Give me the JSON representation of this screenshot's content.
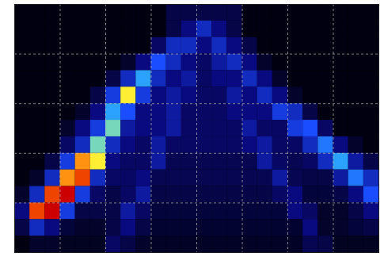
{
  "chart_data": {
    "type": "heatmap",
    "xlim": [
      0,
      8
    ],
    "ylim": [
      0,
      5
    ],
    "xticks": [
      1,
      2,
      3,
      4,
      5,
      6,
      7
    ],
    "yticks": [
      1,
      2,
      3,
      4
    ],
    "grid": true,
    "tick_labels": false,
    "cells": [
      [
        0,
        0,
        0,
        0,
        0,
        0,
        0,
        0,
        0,
        0,
        1,
        1,
        1,
        1,
        1,
        0,
        0,
        0,
        0,
        0,
        0,
        0,
        0,
        0
      ],
      [
        0,
        0,
        0,
        0,
        0,
        0,
        0,
        0,
        0,
        0,
        1,
        2,
        3,
        2,
        1,
        0,
        0,
        0,
        0,
        0,
        0,
        0,
        0,
        0
      ],
      [
        0,
        0,
        0,
        0,
        0,
        0,
        0,
        0,
        0,
        1.5,
        3,
        3,
        2,
        3,
        2,
        1,
        0,
        0,
        0,
        0,
        0,
        0,
        0,
        0
      ],
      [
        0,
        0,
        0,
        0,
        0,
        0,
        0,
        0.5,
        2,
        4,
        3,
        2,
        1.5,
        2.5,
        3,
        2,
        0.5,
        0,
        0,
        0,
        0,
        0,
        0,
        0
      ],
      [
        0,
        0,
        0,
        0,
        0,
        0,
        1,
        3,
        5,
        3,
        2,
        2.5,
        1.5,
        2,
        2,
        3,
        2,
        0.5,
        0,
        0,
        0,
        0,
        0,
        0
      ],
      [
        0,
        0,
        0,
        0,
        0,
        1,
        3.5,
        7,
        3.5,
        2,
        2.5,
        2,
        1.5,
        1.5,
        2.5,
        2,
        3,
        2,
        0.5,
        0,
        0,
        0,
        0,
        0
      ],
      [
        0,
        0,
        0,
        0,
        0.5,
        2,
        5,
        4,
        2,
        2,
        2.5,
        1.5,
        1.5,
        1.5,
        2,
        2,
        2,
        3.5,
        3,
        1,
        0,
        0,
        0,
        0
      ],
      [
        0,
        0,
        0,
        0.5,
        2,
        3.5,
        6,
        2.5,
        2,
        2,
        2.5,
        1.5,
        1.5,
        1.5,
        1.5,
        2.5,
        1.5,
        1.5,
        3.5,
        4,
        1.5,
        0,
        0,
        0
      ],
      [
        0,
        0,
        0,
        1.5,
        3,
        6,
        3,
        2,
        1.5,
        2.5,
        1.5,
        1.5,
        1.5,
        1.5,
        1.5,
        2,
        2.5,
        1.5,
        1.5,
        3,
        4.5,
        2,
        0.5,
        0
      ],
      [
        0,
        0,
        1,
        3.5,
        8,
        7,
        2,
        1.5,
        1.5,
        2.5,
        1.2,
        1.2,
        1.2,
        1.2,
        1.2,
        1.2,
        2.5,
        1.5,
        1.2,
        1.5,
        3,
        5,
        2.5,
        1
      ],
      [
        0,
        0.5,
        3,
        8,
        9,
        3,
        1.5,
        1.5,
        2,
        1.2,
        1.2,
        1.2,
        1.2,
        1.2,
        1.2,
        1.2,
        1.2,
        2.5,
        1.2,
        1,
        1,
        2.5,
        4.5,
        3
      ],
      [
        0.5,
        3,
        9,
        10,
        3.5,
        1.5,
        1,
        1.5,
        2.5,
        1,
        1,
        1,
        1,
        1,
        1,
        1,
        1,
        1.5,
        2,
        0.8,
        0.8,
        1,
        2,
        4
      ],
      [
        2,
        9,
        10,
        3.5,
        1,
        1,
        1,
        2.5,
        1.5,
        0.8,
        0.8,
        0.8,
        0.8,
        0.8,
        0.8,
        0.8,
        0.8,
        0.8,
        2,
        1.5,
        0.5,
        0.5,
        1,
        2
      ],
      [
        1,
        3,
        2,
        0.8,
        0.5,
        0.5,
        1,
        2,
        1,
        0.6,
        0.6,
        0.6,
        0.6,
        0.6,
        0.6,
        0.6,
        0.6,
        0.6,
        0.6,
        2,
        0.5,
        0.5,
        0.8,
        1
      ],
      [
        0,
        0.5,
        0.5,
        0.3,
        0.3,
        0.3,
        1.5,
        1,
        0.5,
        0.4,
        0.4,
        0.4,
        0.4,
        0.4,
        0.4,
        0.4,
        0.4,
        0.4,
        0.4,
        1.2,
        1,
        0.3,
        0.3,
        0.3
      ]
    ]
  }
}
